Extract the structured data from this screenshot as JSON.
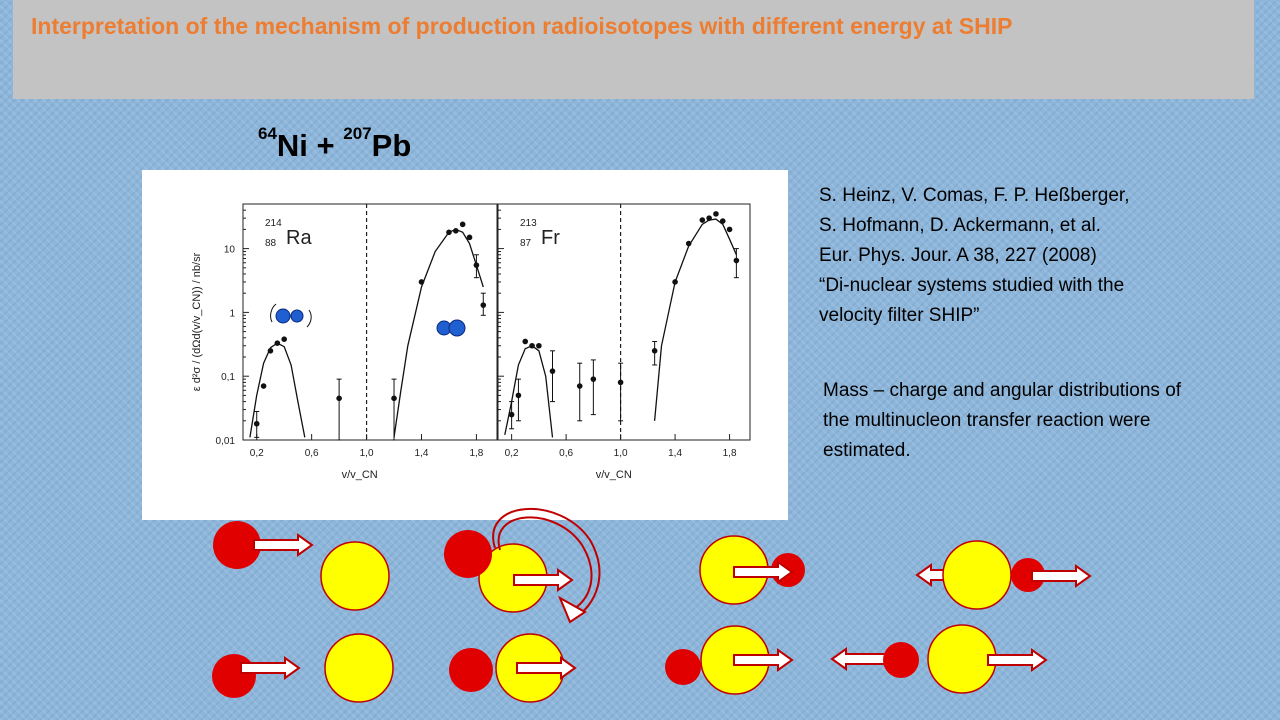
{
  "title": "Interpretation of the mechanism of production  radioisotopes with different energy at SHIP",
  "reaction": {
    "a_mass": "64",
    "a_sym": "Ni",
    "plus": " + ",
    "b_mass": "207",
    "b_sym": "Pb"
  },
  "reference": {
    "lines": [
      "S. Heinz, V. Comas, F. P. Heßberger,",
      "S. Hofmann, D. Ackermann, et al.",
      "Eur. Phys. Jour. A 38, 227 (2008)",
      "“Di-nuclear systems studied with the",
      "velocity filter SHIP”"
    ]
  },
  "note": "Mass – charge and angular distributions of  the multinucleon transfer reaction were estimated.",
  "colors": {
    "title": "#ed7d31",
    "nucleus_small": "#e00000",
    "nucleus_large": "#ffff00",
    "nucleus_outline": "#c00000",
    "arrow_fill": "#ffffff",
    "arrow_stroke": "#c00000",
    "blue_nucleus": "#1f5fd0"
  },
  "chart_data": [
    {
      "type": "scatter",
      "panel": "left",
      "nuclide": {
        "mass": "214",
        "z": "88",
        "symbol": "Ra"
      },
      "ylabel": "ε d²σ / (dΩd(v/v_CN)) / nb/sr",
      "xlabel": "v/v_CN",
      "yscale": "log",
      "ylim": [
        0.01,
        50
      ],
      "xlim": [
        0.1,
        1.95
      ],
      "xticks": [
        "0,2",
        "0,6",
        "1,0",
        "1,4",
        "1,8"
      ],
      "ytick_labels": [
        "0,01",
        "0,1",
        "1",
        "10"
      ],
      "divider_x": 1.0,
      "points": [
        {
          "x": 0.2,
          "y": 0.018,
          "lo": 0.011,
          "hi": 0.028
        },
        {
          "x": 0.25,
          "y": 0.07
        },
        {
          "x": 0.3,
          "y": 0.25
        },
        {
          "x": 0.35,
          "y": 0.33
        },
        {
          "x": 0.4,
          "y": 0.38
        },
        {
          "x": 0.8,
          "y": 0.045,
          "lo": 0.01,
          "hi": 0.09
        },
        {
          "x": 1.2,
          "y": 0.045,
          "lo": 0.01,
          "hi": 0.09
        },
        {
          "x": 1.4,
          "y": 3.0
        },
        {
          "x": 1.6,
          "y": 18
        },
        {
          "x": 1.65,
          "y": 19
        },
        {
          "x": 1.7,
          "y": 24
        },
        {
          "x": 1.75,
          "y": 15
        },
        {
          "x": 1.8,
          "y": 5.5,
          "lo": 3.5,
          "hi": 8
        },
        {
          "x": 1.85,
          "y": 1.3,
          "lo": 0.9,
          "hi": 2
        }
      ],
      "curves": [
        [
          [
            0.15,
            0.011
          ],
          [
            0.2,
            0.05
          ],
          [
            0.25,
            0.16
          ],
          [
            0.3,
            0.28
          ],
          [
            0.35,
            0.33
          ],
          [
            0.4,
            0.29
          ],
          [
            0.45,
            0.15
          ],
          [
            0.5,
            0.04
          ],
          [
            0.55,
            0.011
          ]
        ],
        [
          [
            1.2,
            0.011
          ],
          [
            1.25,
            0.06
          ],
          [
            1.3,
            0.3
          ],
          [
            1.4,
            2.5
          ],
          [
            1.5,
            9
          ],
          [
            1.6,
            18
          ],
          [
            1.65,
            20
          ],
          [
            1.7,
            18
          ],
          [
            1.75,
            12
          ],
          [
            1.8,
            5.5
          ],
          [
            1.85,
            2.5
          ]
        ]
      ]
    },
    {
      "type": "scatter",
      "panel": "right",
      "nuclide": {
        "mass": "213",
        "z": "87",
        "symbol": "Fr"
      },
      "xlabel": "v/v_CN",
      "yscale": "log",
      "ylim": [
        0.01,
        50
      ],
      "xlim": [
        0.1,
        1.95
      ],
      "xticks": [
        "0,2",
        "0,6",
        "1,0",
        "1,4",
        "1,8"
      ],
      "divider_x": 1.0,
      "points": [
        {
          "x": 0.2,
          "y": 0.025,
          "lo": 0.015,
          "hi": 0.04
        },
        {
          "x": 0.25,
          "y": 0.05,
          "lo": 0.02,
          "hi": 0.09
        },
        {
          "x": 0.3,
          "y": 0.35
        },
        {
          "x": 0.35,
          "y": 0.3
        },
        {
          "x": 0.4,
          "y": 0.3
        },
        {
          "x": 0.5,
          "y": 0.12,
          "lo": 0.04,
          "hi": 0.25
        },
        {
          "x": 0.7,
          "y": 0.07,
          "lo": 0.02,
          "hi": 0.16
        },
        {
          "x": 0.8,
          "y": 0.09,
          "lo": 0.025,
          "hi": 0.18
        },
        {
          "x": 1.0,
          "y": 0.08,
          "lo": 0.02,
          "hi": 0.16
        },
        {
          "x": 1.25,
          "y": 0.25,
          "lo": 0.15,
          "hi": 0.35
        },
        {
          "x": 1.4,
          "y": 3.0
        },
        {
          "x": 1.5,
          "y": 12
        },
        {
          "x": 1.6,
          "y": 28
        },
        {
          "x": 1.65,
          "y": 30
        },
        {
          "x": 1.7,
          "y": 35
        },
        {
          "x": 1.75,
          "y": 27
        },
        {
          "x": 1.8,
          "y": 20
        },
        {
          "x": 1.85,
          "y": 6.5,
          "lo": 3.5,
          "hi": 10
        }
      ],
      "curves": [
        [
          [
            0.15,
            0.012
          ],
          [
            0.2,
            0.04
          ],
          [
            0.25,
            0.15
          ],
          [
            0.3,
            0.27
          ],
          [
            0.35,
            0.3
          ],
          [
            0.4,
            0.25
          ],
          [
            0.45,
            0.1
          ],
          [
            0.5,
            0.011
          ]
        ],
        [
          [
            1.25,
            0.02
          ],
          [
            1.3,
            0.3
          ],
          [
            1.4,
            3
          ],
          [
            1.5,
            11
          ],
          [
            1.6,
            24
          ],
          [
            1.65,
            28
          ],
          [
            1.7,
            29
          ],
          [
            1.75,
            24
          ],
          [
            1.8,
            14
          ],
          [
            1.85,
            8
          ]
        ]
      ]
    }
  ]
}
